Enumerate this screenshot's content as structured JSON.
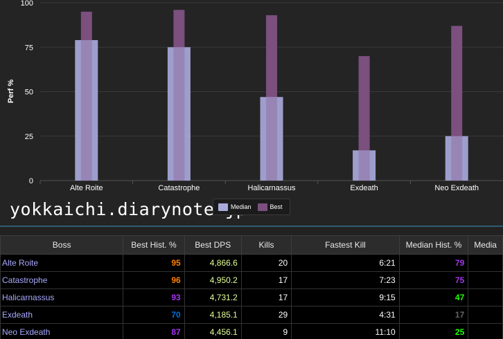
{
  "chart_data": {
    "type": "bar",
    "categories": [
      "Alte Roite",
      "Catastrophe",
      "Halicarnassus",
      "Exdeath",
      "Neo Exdeath"
    ],
    "series": [
      {
        "name": "Median",
        "values": [
          79,
          75,
          47,
          17,
          25
        ],
        "color": "#a9a9dc"
      },
      {
        "name": "Best",
        "values": [
          95,
          96,
          93,
          70,
          87
        ],
        "color": "#7b4f7e"
      }
    ],
    "title": "",
    "xlabel": "",
    "ylabel": "Perf %",
    "ylim": [
      0,
      100
    ],
    "yticks": [
      0,
      25,
      50,
      75,
      100
    ],
    "grid": true,
    "legend_position": "bottom"
  },
  "watermark": "yokkaichi.diarynote.jp",
  "table": {
    "headers": [
      "Boss",
      "Best Hist. %",
      "Best DPS",
      "Kills",
      "Fastest Kill",
      "Median Hist. %",
      "Media"
    ],
    "rows": [
      {
        "boss": "Alte Roite",
        "best_hist": "95",
        "best_hist_color": "#ff8000",
        "best_dps": "4,866.6",
        "kills": "20",
        "fastest": "6:21",
        "median_hist": "79",
        "median_hist_color": "#a335ee"
      },
      {
        "boss": "Catastrophe",
        "best_hist": "96",
        "best_hist_color": "#ff8000",
        "best_dps": "4,950.2",
        "kills": "17",
        "fastest": "7:23",
        "median_hist": "75",
        "median_hist_color": "#a335ee"
      },
      {
        "boss": "Halicarnassus",
        "best_hist": "93",
        "best_hist_color": "#a335ee",
        "best_dps": "4,731.2",
        "kills": "17",
        "fastest": "9:15",
        "median_hist": "47",
        "median_hist_color": "#1eff00"
      },
      {
        "boss": "Exdeath",
        "best_hist": "70",
        "best_hist_color": "#0070dd",
        "best_dps": "4,185.1",
        "kills": "29",
        "fastest": "4:31",
        "median_hist": "17",
        "median_hist_color": "#666666"
      },
      {
        "boss": "Neo Exdeath",
        "best_hist": "87",
        "best_hist_color": "#a335ee",
        "best_dps": "4,456.1",
        "kills": "9",
        "fastest": "11:10",
        "median_hist": "25",
        "median_hist_color": "#1eff00"
      }
    ],
    "boss_color": "#a9a9ff",
    "dps_color": "#e3ff9a"
  }
}
